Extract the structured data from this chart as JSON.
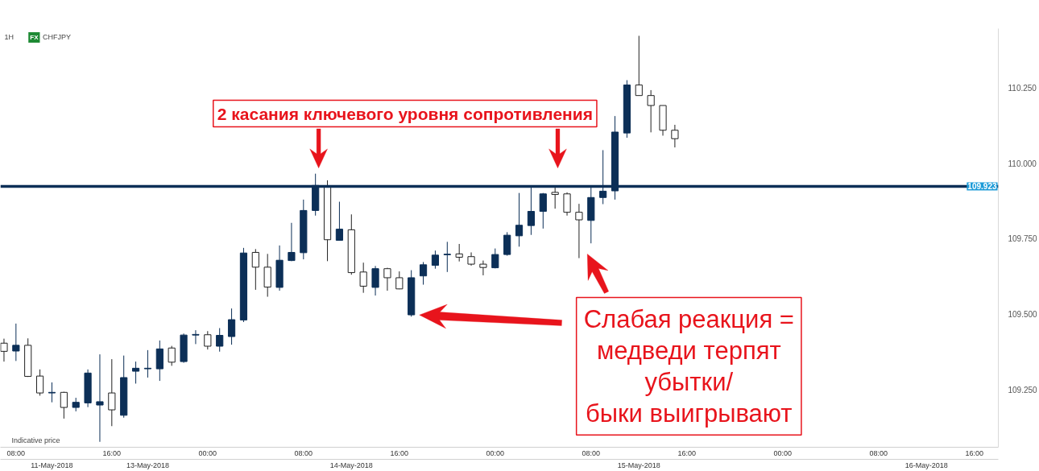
{
  "chart_data": {
    "type": "candlestick",
    "title": "CHFJPY",
    "subtitle": "1H",
    "categories": [
      null,
      "08:00",
      null,
      null,
      "\n11-May-2018",
      null,
      null,
      null,
      null,
      "16:00",
      null,
      null,
      "\n13-May-2018",
      null,
      null,
      null,
      null,
      "00:00",
      null,
      null,
      null,
      null,
      null,
      null,
      null,
      "08:00",
      null,
      null,
      null,
      "\n14-May-2018",
      null,
      null,
      null,
      "16:00",
      null,
      null,
      null,
      null,
      null,
      null,
      null,
      "00:00",
      null,
      null,
      null,
      null,
      null,
      null,
      null,
      "08:00",
      null,
      null,
      null,
      "\n15-May-2018",
      null,
      null,
      null,
      "16:00",
      null,
      null,
      null,
      null,
      null,
      null,
      null,
      "00:00",
      null,
      null,
      null,
      null,
      null,
      null,
      null,
      "08:00",
      null,
      null,
      null,
      "\n16-May-2018",
      null,
      null,
      null,
      "16:00",
      null
    ],
    "ohlc": [
      [
        109.403,
        109.418,
        109.342,
        109.376
      ],
      [
        109.377,
        109.468,
        109.344,
        109.396
      ],
      [
        109.396,
        109.419,
        109.291,
        109.293
      ],
      [
        109.294,
        109.316,
        109.229,
        109.238
      ],
      [
        109.238,
        109.273,
        109.207,
        109.24
      ],
      [
        109.24,
        109.242,
        109.153,
        109.19
      ],
      [
        109.19,
        109.222,
        109.177,
        109.207
      ],
      [
        109.205,
        109.316,
        109.191,
        109.304
      ],
      [
        109.198,
        109.366,
        109.076,
        109.209
      ],
      [
        109.238,
        109.35,
        109.128,
        109.182
      ],
      [
        109.164,
        109.362,
        109.156,
        109.289
      ],
      [
        109.31,
        109.342,
        109.269,
        109.32
      ],
      [
        109.318,
        109.38,
        109.289,
        109.32
      ],
      [
        109.318,
        109.412,
        109.278,
        109.384
      ],
      [
        109.387,
        109.394,
        109.328,
        109.34
      ],
      [
        109.342,
        109.435,
        109.338,
        109.43
      ],
      [
        109.43,
        109.446,
        109.4,
        109.432
      ],
      [
        109.431,
        109.443,
        109.382,
        109.393
      ],
      [
        109.393,
        109.453,
        109.375,
        109.429
      ],
      [
        109.425,
        109.518,
        109.398,
        109.481
      ],
      [
        109.48,
        109.719,
        109.473,
        109.702
      ],
      [
        109.704,
        109.715,
        109.58,
        109.655
      ],
      [
        109.655,
        109.699,
        109.557,
        109.589
      ],
      [
        109.588,
        109.727,
        109.577,
        109.678
      ],
      [
        109.677,
        109.802,
        109.675,
        109.704
      ],
      [
        109.703,
        109.879,
        109.681,
        109.843
      ],
      [
        109.843,
        109.965,
        109.826,
        109.926
      ],
      [
        109.923,
        109.943,
        109.675,
        109.746
      ],
      [
        109.744,
        109.872,
        109.744,
        109.781
      ],
      [
        109.779,
        109.83,
        109.63,
        109.637
      ],
      [
        109.639,
        109.67,
        109.57,
        109.592
      ],
      [
        109.588,
        109.659,
        109.561,
        109.65
      ],
      [
        109.65,
        109.653,
        109.577,
        109.62
      ],
      [
        109.62,
        109.641,
        109.582,
        109.583
      ],
      [
        109.497,
        109.645,
        109.491,
        109.62
      ],
      [
        109.626,
        109.672,
        109.597,
        109.663
      ],
      [
        109.661,
        109.71,
        109.65,
        109.695
      ],
      [
        109.696,
        109.739,
        109.639,
        109.698
      ],
      [
        109.699,
        109.732,
        109.674,
        109.688
      ],
      [
        109.69,
        109.704,
        109.66,
        109.665
      ],
      [
        109.665,
        109.677,
        109.628,
        109.654
      ],
      [
        109.653,
        109.717,
        109.651,
        109.697
      ],
      [
        109.697,
        109.771,
        109.693,
        109.761
      ],
      [
        109.759,
        109.901,
        109.723,
        109.794
      ],
      [
        109.793,
        109.92,
        109.762,
        109.84
      ],
      [
        109.84,
        109.901,
        109.783,
        109.898
      ],
      [
        109.903,
        109.92,
        109.849,
        109.896
      ],
      [
        109.898,
        109.903,
        109.826,
        109.837
      ],
      [
        109.837,
        109.865,
        109.685,
        109.812
      ],
      [
        109.81,
        109.92,
        109.734,
        109.886
      ],
      [
        109.886,
        110.043,
        109.864,
        109.907
      ],
      [
        109.908,
        110.156,
        109.879,
        110.103
      ],
      [
        110.1,
        110.275,
        110.084,
        110.259
      ],
      [
        110.259,
        110.422,
        110.224,
        110.224
      ],
      [
        110.224,
        110.242,
        110.102,
        110.191
      ],
      [
        110.191,
        110.191,
        110.091,
        110.109
      ],
      [
        110.109,
        110.127,
        110.052,
        110.081
      ],
      null,
      null,
      null,
      null,
      null,
      null,
      null,
      null,
      null,
      null,
      null,
      null,
      null,
      null,
      null,
      null,
      null,
      null,
      null,
      null,
      null,
      null,
      null,
      null,
      null,
      null
    ],
    "colors": [
      "#ffffff",
      "#0c2f57",
      "#ffffff",
      "#ffffff",
      "#0c2f57",
      "#ffffff",
      "#0c2f57",
      "#0c2f57",
      "#0c2f57",
      "#ffffff",
      "#0c2f57",
      "#0c2f57",
      "#0c2f57",
      "#0c2f57",
      "#ffffff",
      "#0c2f57",
      "#0c2f57",
      "#ffffff",
      "#0c2f57",
      "#0c2f57",
      "#0c2f57",
      "#ffffff",
      "#ffffff",
      "#0c2f57",
      "#0c2f57",
      "#0c2f57",
      "#0c2f57",
      "#ffffff",
      "#0c2f57",
      "#ffffff",
      "#ffffff",
      "#0c2f57",
      "#ffffff",
      "#ffffff",
      "#0c2f57",
      "#0c2f57",
      "#0c2f57",
      "#0c2f57",
      "#ffffff",
      "#ffffff",
      "#ffffff",
      "#0c2f57",
      "#0c2f57",
      "#0c2f57",
      "#0c2f57",
      "#0c2f57",
      "#ffffff",
      "#ffffff",
      "#ffffff",
      "#0c2f57",
      "#0c2f57",
      "#0c2f57",
      "#0c2f57",
      "#ffffff",
      "#ffffff",
      "#ffffff",
      "#ffffff",
      null,
      null,
      null,
      null,
      null,
      null,
      null,
      null,
      null,
      null,
      null,
      null,
      null,
      null,
      null,
      null,
      null,
      null,
      null,
      null,
      null,
      null,
      null,
      null,
      null,
      null
    ],
    "ylim": [
      109.058,
      110.446
    ],
    "yticks": [
      {
        "value": 109.25,
        "label": "109.250"
      },
      {
        "value": 109.5,
        "label": "109.500"
      },
      {
        "value": 109.75,
        "label": "109.750"
      },
      {
        "value": 110.0,
        "label": "110.000"
      },
      {
        "value": 110.25,
        "label": "110.250"
      }
    ],
    "grid": false,
    "ref_lines": [
      {
        "axis": "y",
        "value": 109.923,
        "label": "109.923",
        "color": "#0c2f57"
      }
    ],
    "annotations": [
      "2 касания ключевого уровня сопротивления",
      "Слабая реакция =\nмедведи терпят\nубытки/\nбыки выигрывают",
      "Indicative price",
      "FX"
    ]
  }
}
